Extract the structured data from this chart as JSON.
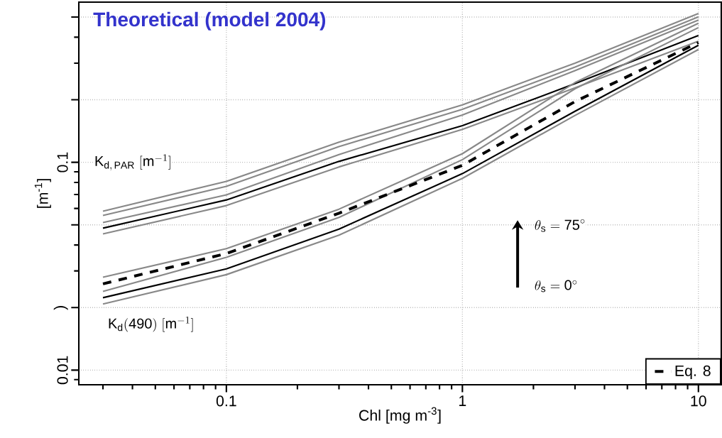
{
  "chart_data": {
    "type": "line",
    "title": "Theoretical (model 2004)",
    "xlabel": "Chl [mg  m$^{-3}$]",
    "ylabel": "[m$^{-1}$]",
    "x": [
      0.03,
      0.1,
      0.3,
      1,
      3,
      10
    ],
    "log": "xy",
    "grid": true,
    "legend": "bottom right",
    "xlim": [
      0.0237,
      12.5
    ],
    "ylim": [
      0.0085,
      0.59
    ],
    "xticks": [
      0.1,
      1,
      10
    ],
    "yticks": [
      {
        "value": 0.01,
        "label": "0.01"
      },
      {
        "value": 0.02,
        "label": ")"
      },
      {
        "value": 0.05,
        "label": null
      },
      {
        "value": 0.1,
        "label": "0.1"
      },
      {
        "value": 0.2,
        "label": null
      },
      {
        "value": 0.5,
        "label": null
      }
    ],
    "series": [
      {
        "color": "#888888",
        "values": [
          0.0582,
          0.0809,
          0.125,
          0.189,
          0.3,
          0.52
        ]
      },
      {
        "color": "#888888",
        "values": [
          0.0555,
          0.0766,
          0.119,
          0.18,
          0.287,
          0.501
        ]
      },
      {
        "color": "#888888",
        "values": [
          0.0513,
          0.0697,
          0.109,
          0.169,
          0.276,
          0.484
        ]
      },
      {
        "color": "#000000",
        "values": [
          0.0482,
          0.0659,
          0.101,
          0.15,
          0.239,
          0.408
        ]
      },
      {
        "color": "#888888",
        "values": [
          0.0452,
          0.0619,
          0.095,
          0.144,
          0.228,
          0.383
        ]
      },
      {
        "color": "#888888",
        "values": [
          0.028,
          0.0384,
          0.0595,
          0.11,
          0.242,
          0.467
        ]
      },
      {
        "color": "#888888",
        "values": [
          0.0239,
          0.0349,
          0.0543,
          0.103,
          0.226,
          0.445
        ]
      },
      {
        "name": "Eq. 8",
        "color": "#000000",
        "line_style": "dashed",
        "values": [
          0.026,
          0.0364,
          0.0569,
          0.0967,
          0.196,
          0.377
        ]
      },
      {
        "color": "#000000",
        "values": [
          0.0223,
          0.0307,
          0.0477,
          0.0882,
          0.176,
          0.366
        ]
      },
      {
        "color": "#888888",
        "values": [
          0.0208,
          0.0288,
          0.0446,
          0.0837,
          0.168,
          0.349
        ]
      }
    ],
    "annotations": [
      "\\mathrm{K}_{\\mathrm{d,\\,PAR}}\\ [\\mathrm{m}^{-1}]",
      "\\mathrm{K}_{\\mathrm{d}}\\mathrm{(490)}\\ [\\mathrm{m}^{-1}]",
      "\\theta_{\\mathrm{s}} = \\mathrm{75}^{\\circ}",
      "\\theta_{\\mathrm{s}} = \\mathrm{0}^{\\circ}"
    ]
  }
}
